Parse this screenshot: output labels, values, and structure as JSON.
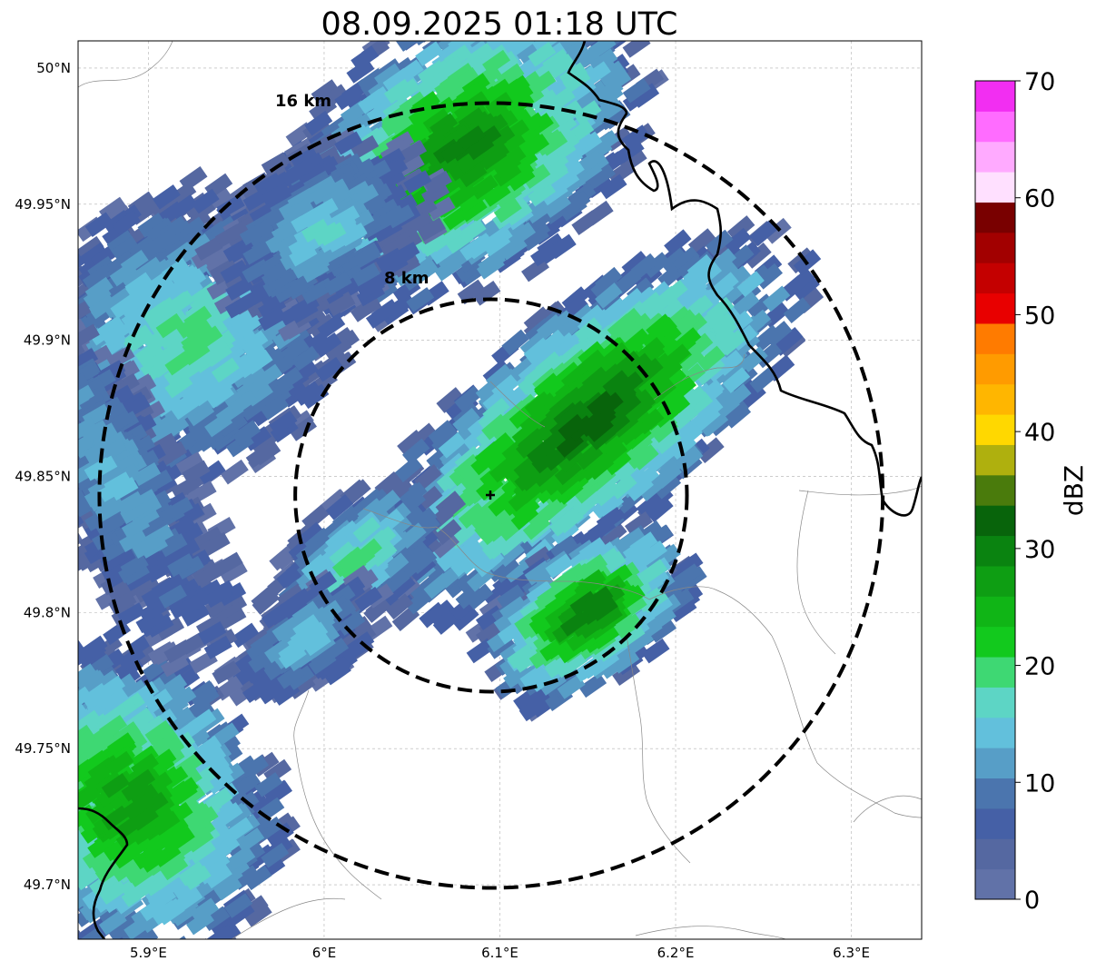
{
  "title": "08.09.2025 01:18 UTC",
  "map": {
    "lon_range": [
      5.86,
      6.34
    ],
    "lat_range": [
      49.68,
      50.01
    ],
    "lon_ticks": [
      {
        "value": 5.9,
        "label": "5.9°E"
      },
      {
        "value": 6.0,
        "label": "6°E"
      },
      {
        "value": 6.1,
        "label": "6.1°E"
      },
      {
        "value": 6.2,
        "label": "6.2°E"
      },
      {
        "value": 6.3,
        "label": "6.3°E"
      }
    ],
    "lat_ticks": [
      {
        "value": 50.0,
        "label": "50°N"
      },
      {
        "value": 49.95,
        "label": "49.95°N"
      },
      {
        "value": 49.9,
        "label": "49.9°N"
      },
      {
        "value": 49.85,
        "label": "49.85°N"
      },
      {
        "value": 49.8,
        "label": "49.8°N"
      },
      {
        "value": 49.75,
        "label": "49.75°N"
      },
      {
        "value": 49.7,
        "label": "49.7°N"
      }
    ],
    "gridlines": true,
    "center": {
      "lon": 6.095,
      "lat": 49.843
    },
    "rings": [
      {
        "radius_km": 8,
        "label": "8 km"
      },
      {
        "radius_km": 16,
        "label": "16 km"
      }
    ]
  },
  "colorbar": {
    "label": "dBZ",
    "range": [
      0,
      70
    ],
    "ticks": [
      "0",
      "10",
      "20",
      "30",
      "40",
      "50",
      "60",
      "70"
    ],
    "colors": [
      "#6172a8",
      "#5568a1",
      "#4560a6",
      "#4b75ae",
      "#579ec7",
      "#62c0dc",
      "#5dd5c5",
      "#3ed873",
      "#12c91d",
      "#10b516",
      "#0e9e13",
      "#0a8310",
      "#08640b",
      "#4a7b0c",
      "#afb00e",
      "#ffd800",
      "#ffb600",
      "#ff9b00",
      "#ff7b00",
      "#e80000",
      "#c40000",
      "#a20000",
      "#790000",
      "#ffe0ff",
      "#ffaaff",
      "#ff6cff",
      "#f22ef2"
    ]
  },
  "echoes": [
    {
      "lon": 6.08,
      "lat": 49.97,
      "rx_km": 8.5,
      "ry_km": 5.5,
      "rot": 35,
      "core_dbz": 29
    },
    {
      "lon": 6.15,
      "lat": 49.87,
      "rx_km": 11,
      "ry_km": 4.5,
      "rot": 40,
      "core_dbz": 32
    },
    {
      "lon": 6.15,
      "lat": 49.8,
      "rx_km": 5,
      "ry_km": 3,
      "rot": 35,
      "core_dbz": 30
    },
    {
      "lon": 6.02,
      "lat": 49.82,
      "rx_km": 4.5,
      "ry_km": 2.5,
      "rot": 40,
      "core_dbz": 18
    },
    {
      "lon": 5.99,
      "lat": 49.79,
      "rx_km": 3.5,
      "ry_km": 2,
      "rot": 35,
      "core_dbz": 14
    },
    {
      "lon": 5.92,
      "lat": 49.9,
      "rx_km": 7,
      "ry_km": 6,
      "rot": 35,
      "core_dbz": 18
    },
    {
      "lon": 6.0,
      "lat": 49.94,
      "rx_km": 5,
      "ry_km": 3.5,
      "rot": 30,
      "core_dbz": 14
    },
    {
      "lon": 5.89,
      "lat": 49.73,
      "rx_km": 6,
      "ry_km": 7,
      "rot": 35,
      "core_dbz": 27
    },
    {
      "lon": 5.88,
      "lat": 49.85,
      "rx_km": 3,
      "ry_km": 9,
      "rot": 30,
      "core_dbz": 12
    }
  ]
}
